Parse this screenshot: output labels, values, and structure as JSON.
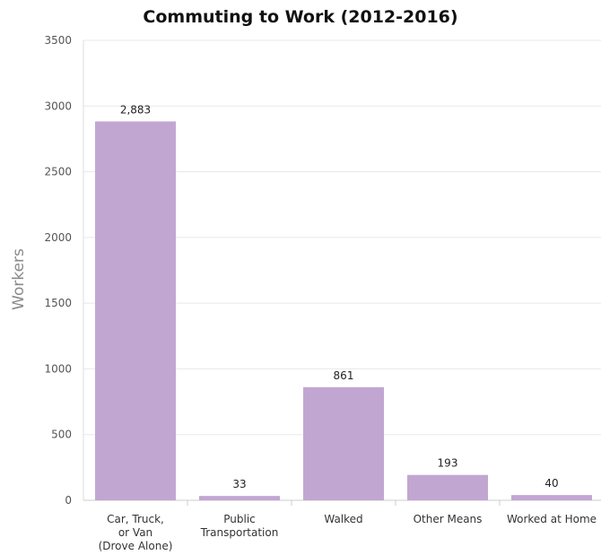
{
  "chart_data": {
    "type": "bar",
    "title": "Commuting to Work (2012-2016)",
    "ylabel": "Workers",
    "xlabel": "",
    "ylim": [
      0,
      3500
    ],
    "yticks": [
      0,
      500,
      1000,
      1500,
      2000,
      2500,
      3000,
      3500
    ],
    "grid": true,
    "categories": [
      [
        "Car, Truck,",
        "or Van",
        "(Drove Alone)"
      ],
      [
        "Public",
        "Transportation"
      ],
      [
        "Walked"
      ],
      [
        "Other Means"
      ],
      [
        "Worked at Home"
      ]
    ],
    "values": [
      2883,
      33,
      861,
      193,
      40
    ],
    "value_labels": [
      "2,883",
      "33",
      "861",
      "193",
      "40"
    ],
    "bar_color": "#c2a6d2"
  }
}
